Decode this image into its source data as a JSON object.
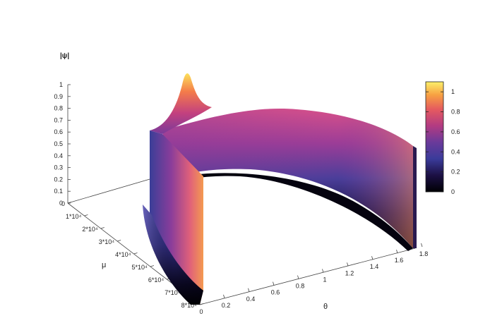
{
  "chart_data": {
    "type": "surface3d",
    "z_axis": {
      "label": "|ψ|",
      "ticks": [
        "0",
        "0.1",
        "0.2",
        "0.3",
        "0.4",
        "0.5",
        "0.6",
        "0.7",
        "0.8",
        "0.9",
        "1"
      ],
      "range": [
        0,
        1
      ]
    },
    "mu_axis": {
      "label": "μ",
      "ticks": [
        "0",
        "1*10⁴",
        "2*10⁴",
        "3*10⁴",
        "4*10⁴",
        "5*10⁴",
        "6*10⁴",
        "7*10⁴",
        "8*10⁴"
      ],
      "range": [
        0,
        80000
      ]
    },
    "theta_axis": {
      "label": "θ",
      "ticks": [
        "0",
        "0.2",
        "0.4",
        "0.6",
        "0.8",
        "1",
        "1.2",
        "1.4",
        "1.6",
        "1.8"
      ],
      "range": [
        0,
        1.8
      ]
    },
    "colorbar": {
      "ticks": [
        "0",
        "0.2",
        "0.4",
        "0.6",
        "0.8",
        "1"
      ],
      "range": [
        0,
        1.1
      ],
      "colors": [
        "#000004",
        "#2c105c",
        "#3b3b9a",
        "#8a2a8a",
        "#d6456c",
        "#f57e3c",
        "#f2c94a",
        "#fcfdbf"
      ]
    },
    "surface": {
      "description_points": [
        {
          "theta": 0.0,
          "mu": 80000,
          "z": 0.0
        },
        {
          "theta": 0.0,
          "mu": 60000,
          "z": 0.65
        },
        {
          "theta": 0.05,
          "mu": 20000,
          "z": 1.0
        },
        {
          "theta": 0.9,
          "mu": 20000,
          "z": 0.75
        },
        {
          "theta": 1.7,
          "mu": 20000,
          "z": 0.55
        },
        {
          "theta": 1.7,
          "mu": 80000,
          "z": 0.0
        }
      ]
    }
  }
}
